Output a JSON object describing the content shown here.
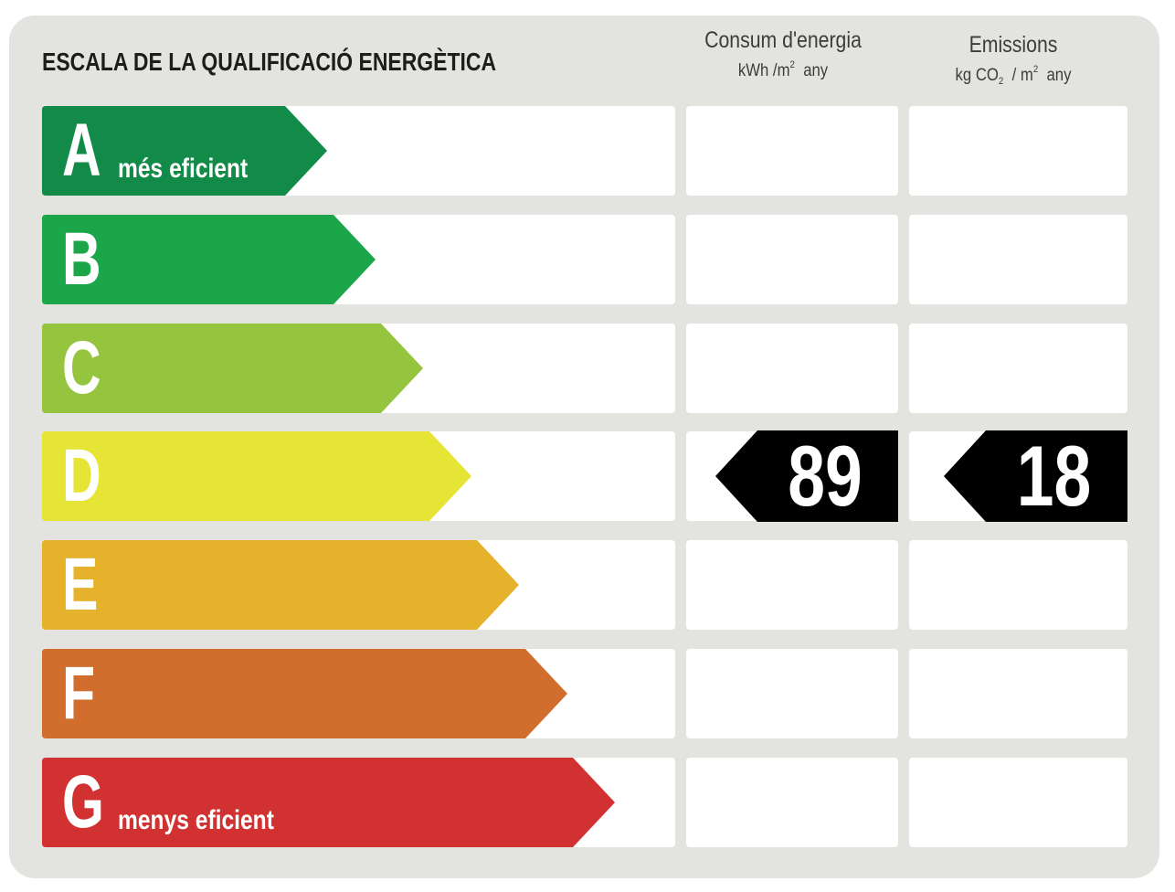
{
  "title": "ESCALA DE LA QUALIFICACIÓ ENERGÈTICA",
  "columns": {
    "consumption": {
      "label": "Consum d'energia",
      "unit_prefix": "kWh /m",
      "unit_sup": "2",
      "unit_suffix": "any"
    },
    "emissions": {
      "label": "Emissions",
      "unit_prefix": "kg CO",
      "unit_sub": "2",
      "unit_mid": "/ m",
      "unit_sup": "2",
      "unit_suffix": "any"
    }
  },
  "ratings": [
    {
      "letter": "A",
      "note": "més eficient",
      "color": "#128b48"
    },
    {
      "letter": "B",
      "note": "",
      "color": "#1ba64a"
    },
    {
      "letter": "C",
      "note": "",
      "color": "#95c43e"
    },
    {
      "letter": "D",
      "note": "",
      "color": "#e6e434"
    },
    {
      "letter": "E",
      "note": "",
      "color": "#e6b22b"
    },
    {
      "letter": "F",
      "note": "",
      "color": "#d16e2d"
    },
    {
      "letter": "G",
      "note": "menys eficient",
      "color": "#d13131"
    }
  ],
  "result": {
    "rating": "D",
    "consumption_value": "89",
    "emissions_value": "18"
  }
}
